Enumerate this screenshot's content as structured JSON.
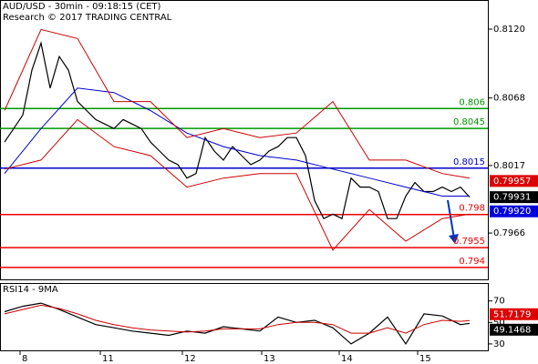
{
  "chart_data": [
    {
      "type": "line",
      "title": "AUD/USD - 30min - 09:18:15 (CET)",
      "subtitle": "Research © 2017 TRADING CENTRAL",
      "ylim": [
        0.7931,
        0.8142
      ],
      "yticks": [
        {
          "value": 0.812,
          "label": "0.8120"
        },
        0.8068,
        0.8017,
        0.7966
      ],
      "series": [
        {
          "color": "#000000",
          "x": [
            0,
            1,
            2,
            3,
            4,
            5,
            6,
            7,
            8,
            9,
            10,
            11,
            12,
            13,
            14,
            15,
            16,
            17,
            18,
            19,
            20,
            21,
            22,
            23,
            24,
            25,
            26,
            27,
            28,
            29,
            30,
            31,
            32,
            33,
            34,
            35,
            36,
            37,
            38,
            39,
            40,
            41,
            42,
            43,
            44,
            45,
            46,
            47,
            48,
            49,
            50,
            51
          ],
          "values": [
            0.80347,
            0.80449,
            0.80551,
            0.80891,
            0.81095,
            0.80755,
            0.80993,
            0.80891,
            0.80653,
            0.80585,
            0.80517,
            0.80483,
            0.80449,
            0.80517,
            0.80483,
            0.80449,
            0.80347,
            0.80279,
            0.80211,
            0.80177,
            0.80075,
            0.80109,
            0.80381,
            0.80279,
            0.80211,
            0.80313,
            0.80245,
            0.80177,
            0.80211,
            0.80279,
            0.80313,
            0.80381,
            0.80381,
            0.80245,
            0.79905,
            0.79769,
            0.79803,
            0.79769,
            0.80075,
            0.80007,
            0.80007,
            0.79973,
            0.79769,
            0.79769,
            0.79939,
            0.80041,
            0.79973,
            0.79973,
            0.80007,
            0.79973,
            0.80007,
            0.79931
          ]
        },
        {
          "color": "#0000cc",
          "x": [
            0,
            4,
            8,
            12,
            16,
            20,
            24,
            28,
            32,
            36,
            40,
            44,
            48,
            51
          ],
          "values": [
            0.80109,
            0.80449,
            0.80755,
            0.80721,
            0.80585,
            0.80415,
            0.80313,
            0.80245,
            0.80211,
            0.80143,
            0.80075,
            0.80007,
            0.79939,
            0.79939
          ]
        },
        {
          "color": "#cc0000",
          "x": [
            0,
            4,
            8,
            12,
            16,
            20,
            24,
            28,
            32,
            36,
            40,
            44,
            48,
            51
          ],
          "values": [
            0.80585,
            0.81197,
            0.81129,
            0.80653,
            0.80653,
            0.80381,
            0.80449,
            0.80381,
            0.80415,
            0.80653,
            0.80211,
            0.80211,
            0.80109,
            0.80075
          ]
        },
        {
          "color": "#cc0000",
          "x": [
            0,
            4,
            8,
            12,
            16,
            20,
            24,
            28,
            32,
            36,
            40,
            44,
            48,
            51
          ],
          "values": [
            0.80143,
            0.80211,
            0.80517,
            0.80313,
            0.80245,
            0.80007,
            0.80075,
            0.80109,
            0.80109,
            0.79531,
            0.79837,
            0.79599,
            0.79769,
            0.79803
          ]
        }
      ],
      "levels": [
        {
          "value": 0.806,
          "color": "#009900"
        },
        {
          "value": 0.8045,
          "color": "#009900"
        },
        {
          "value": 0.8015,
          "color": "#0000cc"
        },
        {
          "value": 0.798,
          "color": "#ee0000"
        },
        {
          "value": 0.7955,
          "color": "#ee0000"
        },
        {
          "value": 0.794,
          "color": "#ee0000"
        }
      ],
      "markers": [
        {
          "value": 0.79957,
          "color": "#dd0000"
        },
        {
          "value": 0.79931,
          "color": "#000000"
        },
        {
          "value": {
            "value": 0.7992,
            "label": "0.79920"
          },
          "color": "#0000dd"
        }
      ]
    },
    {
      "type": "line",
      "title": "RSI14 - 9MA",
      "xlim": [
        -0.5,
        53
      ],
      "xticks": [
        {
          "value": 1.7,
          "label": "8"
        },
        {
          "value": 10.5,
          "label": "11"
        },
        {
          "value": 19.5,
          "label": "12"
        },
        {
          "value": 28.2,
          "label": "13"
        },
        {
          "value": 36.7,
          "label": "14"
        },
        {
          "value": 45.3,
          "label": "15"
        }
      ],
      "ylim": [
        24,
        85
      ],
      "yticks": [
        70,
        50,
        30
      ],
      "series": [
        {
          "color": "#000000",
          "x": [
            0,
            2,
            4,
            6,
            8,
            10,
            12,
            14,
            16,
            18,
            20,
            22,
            24,
            26,
            28,
            30,
            32,
            34,
            36,
            38,
            40,
            42,
            44,
            46,
            48,
            50,
            51
          ],
          "values": [
            60,
            65,
            68,
            62,
            55,
            48,
            45,
            42,
            40,
            38,
            42,
            40,
            46,
            44,
            42,
            55,
            50,
            52,
            45,
            30,
            40,
            55,
            30,
            58,
            56,
            48,
            49.1
          ]
        },
        {
          "color": "#cc0000",
          "x": [
            0,
            2,
            4,
            6,
            8,
            10,
            12,
            14,
            16,
            18,
            20,
            22,
            24,
            26,
            28,
            30,
            32,
            34,
            36,
            38,
            40,
            42,
            44,
            46,
            48,
            50,
            51
          ],
          "values": [
            58,
            62,
            66,
            63,
            58,
            52,
            48,
            45,
            43,
            42,
            41,
            42,
            44,
            44,
            44,
            48,
            50,
            50,
            48,
            40,
            40,
            45,
            40,
            48,
            52,
            51,
            51.7
          ]
        }
      ],
      "markers": [
        {
          "value": 51.7179,
          "color": "#dd0000"
        },
        {
          "value": 49.1468,
          "color": "#000000"
        }
      ]
    }
  ]
}
